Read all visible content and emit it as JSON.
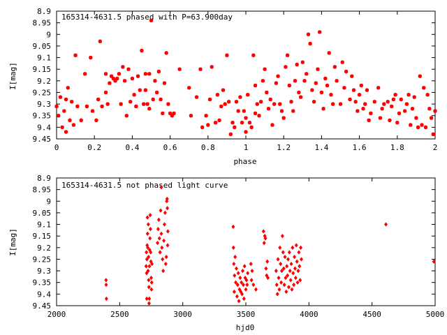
{
  "chart_data": [
    {
      "type": "scatter",
      "title": "165314-4631.5 phased with P=63.900day",
      "xlabel": "phase",
      "ylabel": "I[mag]",
      "xlim": [
        0,
        2
      ],
      "ylim": [
        9.45,
        8.9
      ],
      "y_inverted": true,
      "grid": false,
      "marker_color": "#ff0000",
      "x_ticks": [
        0,
        0.2,
        0.4,
        0.6,
        0.8,
        1,
        1.2,
        1.4,
        1.6,
        1.8,
        2
      ],
      "x_tick_labels": [
        "0",
        "0.2",
        "0.4",
        "0.6",
        "0.8",
        "1",
        "1.2",
        "1.4",
        "1.6",
        "1.8",
        "2"
      ],
      "y_ticks": [
        8.9,
        8.95,
        9,
        9.05,
        9.1,
        9.15,
        9.2,
        9.25,
        9.3,
        9.35,
        9.4,
        9.45
      ],
      "y_tick_labels": [
        "8.9",
        "8.95",
        "9",
        "9.05",
        "9.1",
        "9.15",
        "9.2",
        "9.25",
        "9.3",
        "9.35",
        "9.4",
        "9.45"
      ],
      "points": [
        [
          0.0,
          9.31
        ],
        [
          0.01,
          9.35
        ],
        [
          0.02,
          9.27
        ],
        [
          0.03,
          9.4
        ],
        [
          0.04,
          9.33
        ],
        [
          0.05,
          9.42
        ],
        [
          0.05,
          9.28
        ],
        [
          0.06,
          9.23
        ],
        [
          0.07,
          9.37
        ],
        [
          0.08,
          9.29
        ],
        [
          0.09,
          9.39
        ],
        [
          0.1,
          9.09
        ],
        [
          0.11,
          9.31
        ],
        [
          0.13,
          9.37
        ],
        [
          0.15,
          9.17
        ],
        [
          0.16,
          9.31
        ],
        [
          0.18,
          9.1
        ],
        [
          0.19,
          9.33
        ],
        [
          0.21,
          9.37
        ],
        [
          0.22,
          9.28
        ],
        [
          0.23,
          9.03
        ],
        [
          0.24,
          9.31
        ],
        [
          0.26,
          9.25
        ],
        [
          0.26,
          9.17
        ],
        [
          0.27,
          9.3
        ],
        [
          0.28,
          9.21
        ],
        [
          0.29,
          9.18
        ],
        [
          0.3,
          9.19
        ],
        [
          0.31,
          9.2
        ],
        [
          0.32,
          9.19
        ],
        [
          0.33,
          9.17
        ],
        [
          0.34,
          9.3
        ],
        [
          0.35,
          9.14
        ],
        [
          0.36,
          9.2
        ],
        [
          0.37,
          9.35
        ],
        [
          0.38,
          9.15
        ],
        [
          0.39,
          9.29
        ],
        [
          0.4,
          9.19
        ],
        [
          0.41,
          9.26
        ],
        [
          0.42,
          9.31
        ],
        [
          0.43,
          9.18
        ],
        [
          0.44,
          9.24
        ],
        [
          0.45,
          9.07
        ],
        [
          0.46,
          9.3
        ],
        [
          0.47,
          9.17
        ],
        [
          0.47,
          9.24
        ],
        [
          0.48,
          9.3
        ],
        [
          0.49,
          9.32
        ],
        [
          0.49,
          9.17
        ],
        [
          0.5,
          8.94
        ],
        [
          0.51,
          9.28
        ],
        [
          0.52,
          9.2
        ],
        [
          0.53,
          9.25
        ],
        [
          0.54,
          9.16
        ],
        [
          0.55,
          9.28
        ],
        [
          0.56,
          9.34
        ],
        [
          0.57,
          9.21
        ],
        [
          0.58,
          9.08
        ],
        [
          0.59,
          9.3
        ],
        [
          0.6,
          9.34
        ],
        [
          0.61,
          9.35
        ],
        [
          0.62,
          9.34
        ],
        [
          0.65,
          9.15
        ],
        [
          0.7,
          9.23
        ],
        [
          0.71,
          9.35
        ],
        [
          0.74,
          9.27
        ],
        [
          0.76,
          9.15
        ],
        [
          0.77,
          9.4
        ],
        [
          0.79,
          9.35
        ],
        [
          0.8,
          9.39
        ],
        [
          0.81,
          9.28
        ],
        [
          0.82,
          9.14
        ],
        [
          0.84,
          9.38
        ],
        [
          0.85,
          9.26
        ],
        [
          0.86,
          9.37
        ],
        [
          0.87,
          9.31
        ],
        [
          0.88,
          9.24
        ],
        [
          0.89,
          9.3
        ],
        [
          0.9,
          9.09
        ],
        [
          0.91,
          9.29
        ],
        [
          0.92,
          9.43
        ],
        [
          0.93,
          9.38
        ],
        [
          0.94,
          9.4
        ],
        [
          0.95,
          9.29
        ],
        [
          0.96,
          9.33
        ],
        [
          0.97,
          9.27
        ],
        [
          0.98,
          9.38
        ],
        [
          0.99,
          9.33
        ],
        [
          1.0,
          9.42
        ],
        [
          1.0,
          9.36
        ],
        [
          1.01,
          9.26
        ],
        [
          1.02,
          9.38
        ],
        [
          1.03,
          9.4
        ],
        [
          1.04,
          9.09
        ],
        [
          1.05,
          9.22
        ],
        [
          1.05,
          9.34
        ],
        [
          1.06,
          9.3
        ],
        [
          1.07,
          9.35
        ],
        [
          1.08,
          9.29
        ],
        [
          1.09,
          9.2
        ],
        [
          1.1,
          9.15
        ],
        [
          1.11,
          9.25
        ],
        [
          1.12,
          9.32
        ],
        [
          1.13,
          9.28
        ],
        [
          1.14,
          9.39
        ],
        [
          1.15,
          9.3
        ],
        [
          1.16,
          9.21
        ],
        [
          1.17,
          9.18
        ],
        [
          1.18,
          9.3
        ],
        [
          1.19,
          9.33
        ],
        [
          1.2,
          9.36
        ],
        [
          1.21,
          9.14
        ],
        [
          1.22,
          9.09
        ],
        [
          1.23,
          9.22
        ],
        [
          1.24,
          9.29
        ],
        [
          1.25,
          9.33
        ],
        [
          1.26,
          9.2
        ],
        [
          1.27,
          9.13
        ],
        [
          1.28,
          9.25
        ],
        [
          1.29,
          9.27
        ],
        [
          1.3,
          9.12
        ],
        [
          1.31,
          9.2
        ],
        [
          1.32,
          9.17
        ],
        [
          1.33,
          9.0
        ],
        [
          1.34,
          9.04
        ],
        [
          1.35,
          9.24
        ],
        [
          1.36,
          9.29
        ],
        [
          1.37,
          9.21
        ],
        [
          1.38,
          9.15
        ],
        [
          1.39,
          8.99
        ],
        [
          1.4,
          9.25
        ],
        [
          1.41,
          9.32
        ],
        [
          1.42,
          9.19
        ],
        [
          1.43,
          9.22
        ],
        [
          1.44,
          9.08
        ],
        [
          1.45,
          9.26
        ],
        [
          1.46,
          9.3
        ],
        [
          1.47,
          9.14
        ],
        [
          1.48,
          9.2
        ],
        [
          1.5,
          9.3
        ],
        [
          1.51,
          9.12
        ],
        [
          1.52,
          9.23
        ],
        [
          1.53,
          9.16
        ],
        [
          1.55,
          9.28
        ],
        [
          1.56,
          9.18
        ],
        [
          1.57,
          9.24
        ],
        [
          1.58,
          9.29
        ],
        [
          1.59,
          9.33
        ],
        [
          1.6,
          9.26
        ],
        [
          1.61,
          9.22
        ],
        [
          1.62,
          9.32
        ],
        [
          1.63,
          9.3
        ],
        [
          1.64,
          9.24
        ],
        [
          1.65,
          9.37
        ],
        [
          1.66,
          9.34
        ],
        [
          1.68,
          9.29
        ],
        [
          1.7,
          9.23
        ],
        [
          1.71,
          9.36
        ],
        [
          1.72,
          9.32
        ],
        [
          1.73,
          9.3
        ],
        [
          1.75,
          9.29
        ],
        [
          1.76,
          9.37
        ],
        [
          1.77,
          9.31
        ],
        [
          1.78,
          9.28
        ],
        [
          1.79,
          9.26
        ],
        [
          1.8,
          9.38
        ],
        [
          1.81,
          9.34
        ],
        [
          1.82,
          9.28
        ],
        [
          1.84,
          9.33
        ],
        [
          1.85,
          9.3
        ],
        [
          1.86,
          9.26
        ],
        [
          1.87,
          9.39
        ],
        [
          1.88,
          9.32
        ],
        [
          1.89,
          9.27
        ],
        [
          1.9,
          9.36
        ],
        [
          1.91,
          9.4
        ],
        [
          1.92,
          9.18
        ],
        [
          1.93,
          9.39
        ],
        [
          1.94,
          9.23
        ],
        [
          1.95,
          9.4
        ],
        [
          1.96,
          9.26
        ],
        [
          1.97,
          9.32
        ],
        [
          1.98,
          9.36
        ],
        [
          1.99,
          9.43
        ],
        [
          2.0,
          9.33
        ]
      ]
    },
    {
      "type": "scatter",
      "title": "165314-4631.5 not phased light curve",
      "xlabel": "hjd0",
      "ylabel": "I[mag]",
      "xlim": [
        2000,
        5000
      ],
      "ylim": [
        9.45,
        8.9
      ],
      "y_inverted": true,
      "grid": false,
      "marker_color": "#ff0000",
      "x_ticks": [
        2000,
        2500,
        3000,
        3500,
        4000,
        4500,
        5000
      ],
      "x_tick_labels": [
        "2000",
        "2500",
        "3000",
        "3500",
        "4000",
        "4500",
        "5000"
      ],
      "y_ticks": [
        8.9,
        8.95,
        9,
        9.05,
        9.1,
        9.15,
        9.2,
        9.25,
        9.3,
        9.35,
        9.4,
        9.45
      ],
      "y_tick_labels": [
        "8.9",
        "8.95",
        "9",
        "9.05",
        "9.1",
        "9.15",
        "9.2",
        "9.25",
        "9.3",
        "9.35",
        "9.4",
        "9.45"
      ],
      "points": [
        [
          2392,
          9.34
        ],
        [
          2393,
          9.36
        ],
        [
          2395,
          9.42
        ],
        [
          2710,
          9.28
        ],
        [
          2712,
          9.22
        ],
        [
          2714,
          9.31
        ],
        [
          2715,
          9.42
        ],
        [
          2716,
          9.25
        ],
        [
          2718,
          9.19
        ],
        [
          2720,
          9.07
        ],
        [
          2721,
          9.14
        ],
        [
          2723,
          9.2
        ],
        [
          2725,
          9.3
        ],
        [
          2727,
          9.1
        ],
        [
          2729,
          9.24
        ],
        [
          2730,
          9.34
        ],
        [
          2732,
          9.37
        ],
        [
          2733,
          9.44
        ],
        [
          2735,
          9.42
        ],
        [
          2736,
          9.28
        ],
        [
          2738,
          9.21
        ],
        [
          2740,
          9.16
        ],
        [
          2742,
          9.06
        ],
        [
          2744,
          9.12
        ],
        [
          2746,
          9.22
        ],
        [
          2748,
          9.26
        ],
        [
          2750,
          9.33
        ],
        [
          2752,
          9.38
        ],
        [
          2754,
          9.35
        ],
        [
          2756,
          9.27
        ],
        [
          2800,
          9.18
        ],
        [
          2805,
          9.12
        ],
        [
          2810,
          9.08
        ],
        [
          2815,
          9.16
        ],
        [
          2820,
          9.22
        ],
        [
          2825,
          9.04
        ],
        [
          2830,
          9.14
        ],
        [
          2835,
          9.2
        ],
        [
          2840,
          9.25
        ],
        [
          2845,
          9.3
        ],
        [
          2850,
          9.17
        ],
        [
          2855,
          9.1
        ],
        [
          2860,
          9.05
        ],
        [
          2865,
          9.27
        ],
        [
          2870,
          9.24
        ],
        [
          2873,
          9.0
        ],
        [
          2876,
          8.99
        ],
        [
          2878,
          9.03
        ],
        [
          2880,
          9.19
        ],
        [
          2882,
          9.13
        ],
        [
          2830,
          8.94
        ],
        [
          3400,
          9.11
        ],
        [
          3402,
          9.2
        ],
        [
          3405,
          9.27
        ],
        [
          3408,
          9.39
        ],
        [
          3410,
          9.32
        ],
        [
          3415,
          9.24
        ],
        [
          3420,
          9.35
        ],
        [
          3425,
          9.29
        ],
        [
          3430,
          9.41
        ],
        [
          3435,
          9.36
        ],
        [
          3440,
          9.31
        ],
        [
          3445,
          9.43
        ],
        [
          3450,
          9.38
        ],
        [
          3455,
          9.33
        ],
        [
          3460,
          9.39
        ],
        [
          3465,
          9.35
        ],
        [
          3470,
          9.4
        ],
        [
          3475,
          9.3
        ],
        [
          3480,
          9.36
        ],
        [
          3485,
          9.42
        ],
        [
          3490,
          9.28
        ],
        [
          3495,
          9.33
        ],
        [
          3500,
          9.38
        ],
        [
          3505,
          9.34
        ],
        [
          3510,
          9.36
        ],
        [
          3515,
          9.31
        ],
        [
          3540,
          9.27
        ],
        [
          3545,
          9.34
        ],
        [
          3550,
          9.3
        ],
        [
          3560,
          9.36
        ],
        [
          3580,
          9.38
        ],
        [
          3640,
          9.13
        ],
        [
          3645,
          9.18
        ],
        [
          3650,
          9.15
        ],
        [
          3655,
          9.16
        ],
        [
          3660,
          9.29
        ],
        [
          3665,
          9.32
        ],
        [
          3670,
          9.26
        ],
        [
          3675,
          9.33
        ],
        [
          3740,
          9.3
        ],
        [
          3745,
          9.36
        ],
        [
          3750,
          9.4
        ],
        [
          3755,
          9.25
        ],
        [
          3760,
          9.33
        ],
        [
          3765,
          9.38
        ],
        [
          3770,
          9.2
        ],
        [
          3775,
          9.27
        ],
        [
          3780,
          9.35
        ],
        [
          3785,
          9.3
        ],
        [
          3790,
          9.15
        ],
        [
          3795,
          9.22
        ],
        [
          3800,
          9.29
        ],
        [
          3805,
          9.36
        ],
        [
          3810,
          9.24
        ],
        [
          3815,
          9.33
        ],
        [
          3820,
          9.39
        ],
        [
          3825,
          9.28
        ],
        [
          3830,
          9.32
        ],
        [
          3835,
          9.25
        ],
        [
          3840,
          9.37
        ],
        [
          3845,
          9.22
        ],
        [
          3850,
          9.3
        ],
        [
          3855,
          9.34
        ],
        [
          3860,
          9.27
        ],
        [
          3865,
          9.38
        ],
        [
          3870,
          9.2
        ],
        [
          3875,
          9.31
        ],
        [
          3880,
          9.36
        ],
        [
          3885,
          9.24
        ],
        [
          3890,
          9.29
        ],
        [
          3895,
          9.33
        ],
        [
          3900,
          9.19
        ],
        [
          3905,
          9.26
        ],
        [
          3910,
          9.35
        ],
        [
          3915,
          9.3
        ],
        [
          3920,
          9.22
        ],
        [
          3925,
          9.28
        ],
        [
          3930,
          9.34
        ],
        [
          3935,
          9.2
        ],
        [
          3940,
          9.25
        ],
        [
          4610,
          9.1
        ],
        [
          4990,
          9.26
        ]
      ]
    }
  ]
}
